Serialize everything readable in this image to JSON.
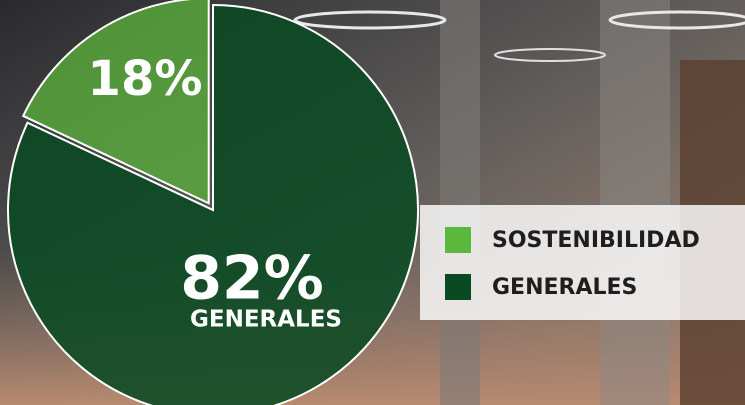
{
  "chart_data": {
    "type": "pie",
    "categories": [
      "SOSTENIBILIDAD",
      "GENERALES"
    ],
    "values": [
      18,
      82
    ],
    "value_labels": [
      "18%",
      "82%"
    ],
    "colors": [
      "#5cb83a",
      "#0a4a22"
    ]
  }
}
